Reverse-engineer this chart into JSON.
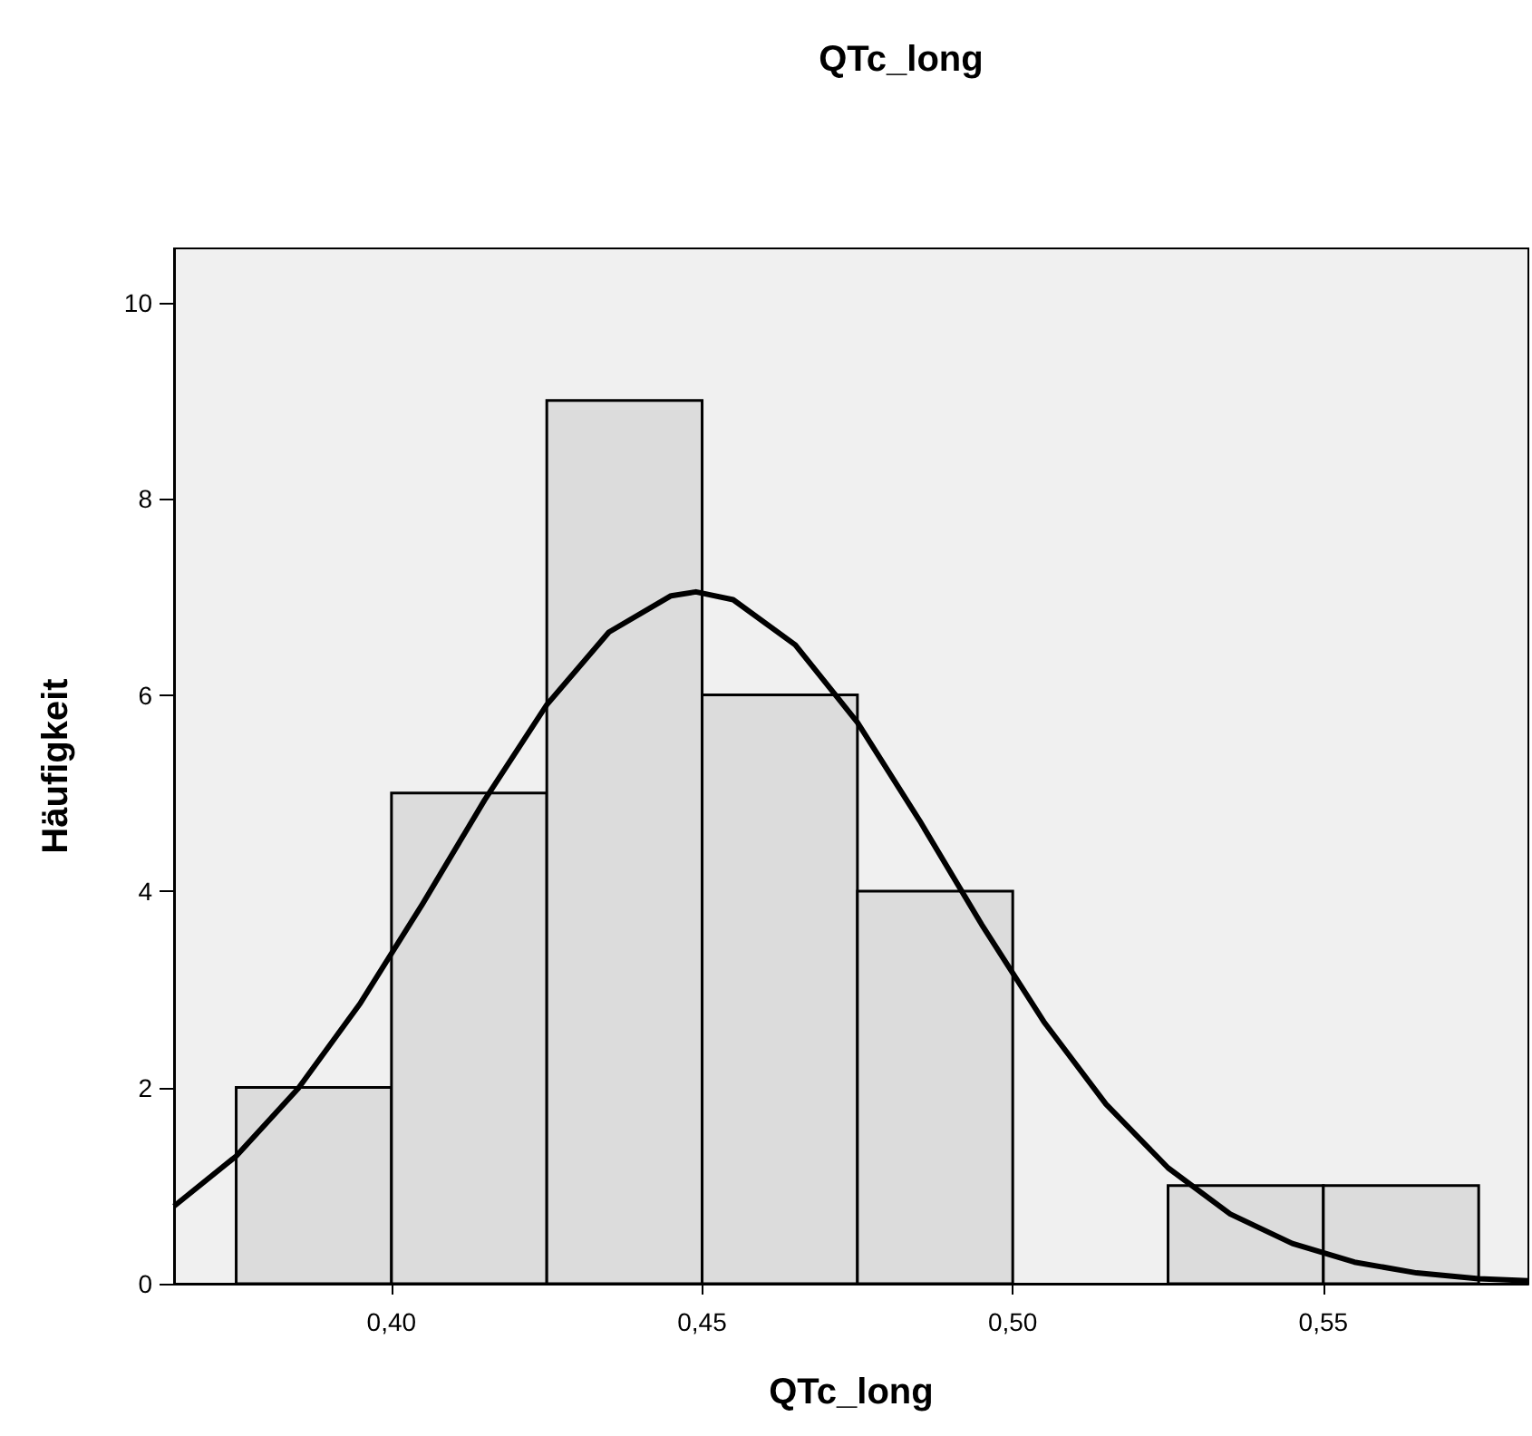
{
  "chart_data": {
    "type": "histogram",
    "title": "QTc_long",
    "xlabel": "QTc_long",
    "ylabel": "Häufigkeit",
    "bins": [
      0.375,
      0.4,
      0.425,
      0.45,
      0.475,
      0.5,
      0.525,
      0.55,
      0.575
    ],
    "values": [
      2,
      5,
      9,
      6,
      4,
      0,
      1,
      1
    ],
    "color": "#dcdcdc",
    "xlim": [
      0.365,
      0.583
    ],
    "xticks": [
      {
        "value": 0.4,
        "label": "0,40"
      },
      {
        "value": 0.45,
        "label": "0,45"
      },
      {
        "value": 0.5,
        "label": "0,50"
      },
      {
        "value": 0.55,
        "label": "0,55"
      }
    ],
    "ylim": [
      0,
      10.55
    ],
    "yticks": [
      0,
      2,
      4,
      6,
      8,
      10
    ],
    "grid": false,
    "series": [
      {
        "type": "line",
        "color": "#000000",
        "x": [
          0.365,
          0.375,
          0.385,
          0.395,
          0.405,
          0.415,
          0.425,
          0.435,
          0.445,
          0.449,
          0.455,
          0.465,
          0.475,
          0.485,
          0.495,
          0.505,
          0.515,
          0.525,
          0.535,
          0.545,
          0.555,
          0.565,
          0.575,
          0.583
        ],
        "values": [
          0.79,
          1.3,
          1.99,
          2.86,
          3.87,
          4.93,
          5.9,
          6.64,
          7.01,
          7.05,
          6.97,
          6.51,
          5.72,
          4.72,
          3.66,
          2.67,
          1.83,
          1.18,
          0.71,
          0.41,
          0.22,
          0.11,
          0.05,
          0.03
        ]
      }
    ]
  }
}
